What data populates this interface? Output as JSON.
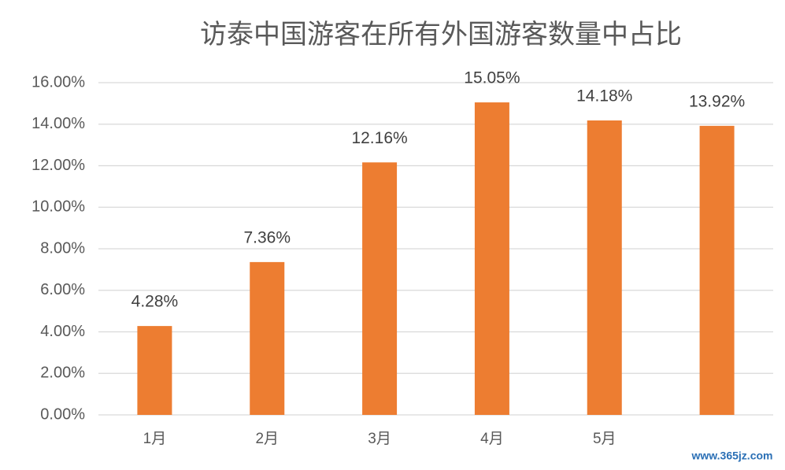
{
  "chart_data": {
    "type": "bar",
    "title": "访泰中国游客在所有外国游客数量中占比",
    "categories": [
      "1月",
      "2月",
      "3月",
      "4月",
      "5月",
      null
    ],
    "values": [
      4.28,
      7.36,
      12.16,
      15.05,
      14.18,
      13.92
    ],
    "value_labels": [
      "4.28%",
      "7.36%",
      "12.16%",
      "15.05%",
      "14.18%",
      "13.92%"
    ],
    "color": "#ed7d31",
    "ylim": [
      0,
      16
    ],
    "yticks": [
      {
        "value": 0,
        "label": "0.00%"
      },
      {
        "value": 2,
        "label": "2.00%"
      },
      {
        "value": 4,
        "label": "4.00%"
      },
      {
        "value": 6,
        "label": "6.00%"
      },
      {
        "value": 8,
        "label": "8.00%"
      },
      {
        "value": 10,
        "label": "10.00%"
      },
      {
        "value": 12,
        "label": "12.00%"
      },
      {
        "value": 14,
        "label": "14.00%"
      },
      {
        "value": 16,
        "label": "16.00%"
      }
    ],
    "grid": true,
    "watermark": "www.365jz.com"
  }
}
